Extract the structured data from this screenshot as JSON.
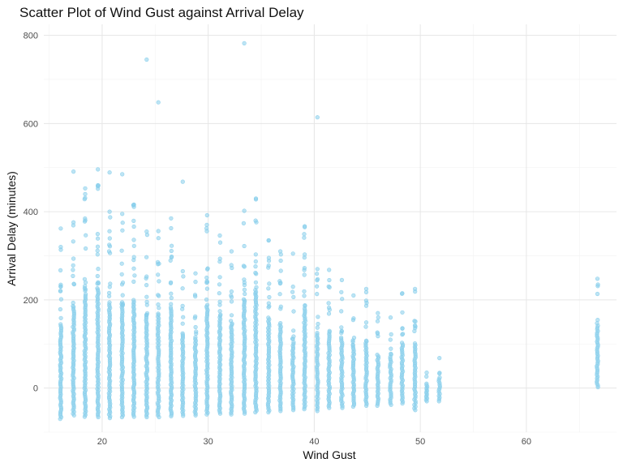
{
  "chart_data": {
    "type": "scatter",
    "title": "Scatter Plot of Wind Gust against Arrival Delay",
    "xlabel": "Wind Gust",
    "ylabel": "Arrival Delay (minutes)",
    "xlim": [
      14.5,
      68.5
    ],
    "ylim": [
      -100,
      825
    ],
    "x_ticks": [
      20,
      30,
      40,
      50,
      60
    ],
    "y_ticks": [
      0,
      200,
      400,
      600,
      800
    ],
    "grid": true,
    "point_color": "#87CEEB",
    "columns": [
      {
        "x": 16.1,
        "min": -70,
        "max": 320
      },
      {
        "x": 17.3,
        "min": -62,
        "max": 376
      },
      {
        "x": 18.4,
        "min": -65,
        "max": 440
      },
      {
        "x": 19.6,
        "min": -66,
        "max": 460
      },
      {
        "x": 20.7,
        "min": -68,
        "max": 400
      },
      {
        "x": 21.9,
        "min": -66,
        "max": 395
      },
      {
        "x": 23.0,
        "min": -65,
        "max": 416
      },
      {
        "x": 24.2,
        "min": -66,
        "max": 355
      },
      {
        "x": 25.3,
        "min": -66,
        "max": 356
      },
      {
        "x": 26.5,
        "min": -64,
        "max": 385
      },
      {
        "x": 27.6,
        "min": -63,
        "max": 265
      },
      {
        "x": 28.8,
        "min": -62,
        "max": 260
      },
      {
        "x": 29.9,
        "min": -60,
        "max": 392
      },
      {
        "x": 31.1,
        "min": -58,
        "max": 346
      },
      {
        "x": 32.2,
        "min": -60,
        "max": 310
      },
      {
        "x": 33.4,
        "min": -58,
        "max": 402
      },
      {
        "x": 34.5,
        "min": -55,
        "max": 430
      },
      {
        "x": 35.7,
        "min": -55,
        "max": 335
      },
      {
        "x": 36.8,
        "min": -52,
        "max": 310
      },
      {
        "x": 38.0,
        "min": -50,
        "max": 230
      },
      {
        "x": 39.1,
        "min": -48,
        "max": 367
      },
      {
        "x": 40.3,
        "min": -52,
        "max": 270
      },
      {
        "x": 41.4,
        "min": -45,
        "max": 268
      },
      {
        "x": 42.6,
        "min": -45,
        "max": 245
      },
      {
        "x": 43.7,
        "min": -42,
        "max": 210
      },
      {
        "x": 44.9,
        "min": -40,
        "max": 225
      },
      {
        "x": 46.0,
        "min": -40,
        "max": 170
      },
      {
        "x": 47.2,
        "min": -38,
        "max": 160
      },
      {
        "x": 48.3,
        "min": -35,
        "max": 215
      },
      {
        "x": 49.5,
        "min": -50,
        "max": 225
      },
      {
        "x": 50.6,
        "min": -30,
        "max": 35
      },
      {
        "x": 51.8,
        "min": -30,
        "max": 68
      },
      {
        "x": 66.7,
        "min": 2,
        "max": 248
      }
    ],
    "outliers": [
      {
        "x": 24.2,
        "y": 745
      },
      {
        "x": 25.3,
        "y": 648
      },
      {
        "x": 33.4,
        "y": 782
      },
      {
        "x": 40.3,
        "y": 614
      },
      {
        "x": 17.3,
        "y": 491
      },
      {
        "x": 19.6,
        "y": 496
      },
      {
        "x": 20.7,
        "y": 489
      },
      {
        "x": 21.9,
        "y": 485
      },
      {
        "x": 27.6,
        "y": 468
      },
      {
        "x": 18.4,
        "y": 453
      },
      {
        "x": 19.6,
        "y": 452
      },
      {
        "x": 34.5,
        "y": 428
      },
      {
        "x": 16.1,
        "y": 362
      },
      {
        "x": 39.1,
        "y": 365
      },
      {
        "x": 38.0,
        "y": 305
      },
      {
        "x": 39.1,
        "y": 303
      },
      {
        "x": 35.7,
        "y": 335
      }
    ]
  }
}
